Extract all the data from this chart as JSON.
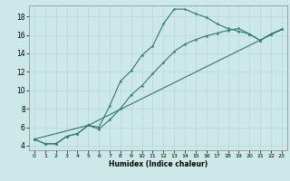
{
  "xlabel": "Humidex (Indice chaleur)",
  "bg_color": "#cce8e8",
  "grid_color": "#b8d8d8",
  "line_color": "#2d7a6e",
  "xlim": [
    -0.5,
    23.5
  ],
  "ylim": [
    3.5,
    19.2
  ],
  "xticks": [
    0,
    1,
    2,
    3,
    4,
    5,
    6,
    7,
    8,
    9,
    10,
    11,
    12,
    13,
    14,
    15,
    16,
    17,
    18,
    19,
    20,
    21,
    22,
    23
  ],
  "yticks": [
    4,
    6,
    8,
    10,
    12,
    14,
    16,
    18
  ],
  "series1_x": [
    0,
    1,
    2,
    3,
    4,
    5,
    6,
    7,
    8,
    9,
    10,
    11,
    12,
    13,
    14,
    15,
    16,
    17,
    18,
    19,
    20,
    21,
    22,
    23
  ],
  "series1_y": [
    4.7,
    4.2,
    4.2,
    5.0,
    5.3,
    6.2,
    6.0,
    8.3,
    11.0,
    12.1,
    13.8,
    14.8,
    17.2,
    18.8,
    18.8,
    18.3,
    17.9,
    17.2,
    16.7,
    16.4,
    16.1,
    15.4,
    16.1,
    16.6
  ],
  "series2_x": [
    0,
    1,
    2,
    3,
    4,
    5,
    6,
    7,
    8,
    9,
    10,
    11,
    12,
    13,
    14,
    15,
    16,
    17,
    18,
    19,
    20,
    21,
    22,
    23
  ],
  "series2_y": [
    4.7,
    4.2,
    4.2,
    5.0,
    5.3,
    6.2,
    5.8,
    6.8,
    8.0,
    9.5,
    10.5,
    11.8,
    13.0,
    14.2,
    15.0,
    15.5,
    15.9,
    16.2,
    16.5,
    16.7,
    16.1,
    15.4,
    16.1,
    16.6
  ],
  "series3_x": [
    0,
    5,
    23
  ],
  "series3_y": [
    4.7,
    6.2,
    16.6
  ]
}
